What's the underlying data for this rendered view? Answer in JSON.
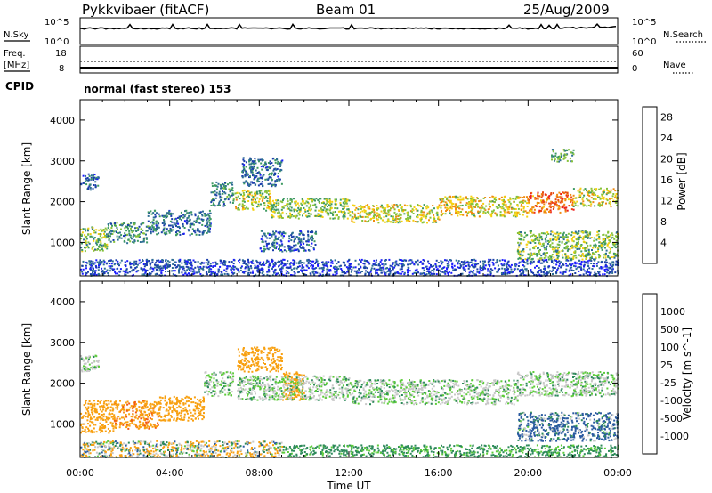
{
  "header": {
    "station": "Pykkvibaer (fitACF)",
    "beam": "Beam 01",
    "date": "25/Aug/2009"
  },
  "noise_panel": {
    "left_label": "N.Sky",
    "left_ticks": [
      "10^5",
      "10^0"
    ],
    "right_label": "N.Search",
    "right_ticks": [
      "10^5",
      "10^0"
    ]
  },
  "freq_panel": {
    "left_label_1": "Freq.",
    "left_label_2": "[MHz]",
    "left_ticks": [
      "18",
      "8"
    ],
    "right_label": "Nave",
    "right_ticks": [
      "60",
      "0"
    ]
  },
  "cpid": {
    "label": "CPID",
    "text": "normal (fast stereo) 153"
  },
  "colors": {
    "power": [
      "#1c1cff",
      "#1a3dab",
      "#2d6e94",
      "#3e9a62",
      "#86c23a",
      "#f4d010",
      "#f08a10",
      "#e84a10",
      "#ee1c1c"
    ],
    "velocity": [
      "#ee1c1c",
      "#f35a10",
      "#f8a010",
      "#c8c8c8",
      "#c8c8c8",
      "#5ccc3a",
      "#2d8a5a",
      "#2a5aa0",
      "#1c2ccc"
    ]
  },
  "chart_data": [
    {
      "type": "heatmap",
      "title": "",
      "xlabel": "",
      "ylabel": "Slant Range [km]",
      "xlim": [
        0,
        24
      ],
      "ylim": [
        180,
        4500
      ],
      "yticks": [
        1000,
        2000,
        3000,
        4000
      ],
      "colorbar": {
        "label": "Power [dB]",
        "range": [
          0,
          30
        ],
        "ticks": [
          4,
          8,
          12,
          16,
          20,
          24,
          28
        ],
        "tick_labels": [
          "4",
          "8",
          "12",
          "16",
          "20",
          "24",
          "28"
        ]
      },
      "quantity": "power",
      "bands": [
        {
          "t0": 0.0,
          "t1": 0.8,
          "r0": 2300,
          "r1": 2700,
          "v": 7
        },
        {
          "t0": 0.0,
          "t1": 1.2,
          "r0": 800,
          "r1": 1400,
          "v": 14
        },
        {
          "t0": 1.2,
          "t1": 3.0,
          "r0": 1000,
          "r1": 1500,
          "v": 11
        },
        {
          "t0": 3.0,
          "t1": 5.8,
          "r0": 1200,
          "r1": 1800,
          "v": 8
        },
        {
          "t0": 5.8,
          "t1": 6.8,
          "r0": 1900,
          "r1": 2500,
          "v": 9
        },
        {
          "t0": 6.8,
          "t1": 8.5,
          "r0": 1800,
          "r1": 2300,
          "v": 16
        },
        {
          "t0": 7.2,
          "t1": 9.0,
          "r0": 2400,
          "r1": 3100,
          "v": 8
        },
        {
          "t0": 8.0,
          "t1": 10.5,
          "r0": 800,
          "r1": 1300,
          "v": 7
        },
        {
          "t0": 8.5,
          "t1": 12.0,
          "r0": 1600,
          "r1": 2100,
          "v": 15
        },
        {
          "t0": 12.0,
          "t1": 16.0,
          "r0": 1500,
          "r1": 1950,
          "v": 17
        },
        {
          "t0": 16.0,
          "t1": 20.0,
          "r0": 1650,
          "r1": 2150,
          "v": 18
        },
        {
          "t0": 20.0,
          "t1": 22.0,
          "r0": 1750,
          "r1": 2250,
          "v": 24
        },
        {
          "t0": 22.0,
          "t1": 24.0,
          "r0": 1900,
          "r1": 2350,
          "v": 17
        },
        {
          "t0": 19.5,
          "t1": 24.0,
          "r0": 600,
          "r1": 1300,
          "v": 14
        },
        {
          "t0": 21.0,
          "t1": 22.0,
          "r0": 3000,
          "r1": 3300,
          "v": 12
        },
        {
          "t0": 0.0,
          "t1": 24.0,
          "r0": 200,
          "r1": 600,
          "v": 5
        }
      ]
    },
    {
      "type": "heatmap",
      "title": "",
      "xlabel": "Time UT",
      "ylabel": "Slant Range [km]",
      "xlim": [
        0,
        24
      ],
      "ylim": [
        180,
        4500
      ],
      "yticks": [
        1000,
        2000,
        3000,
        4000
      ],
      "xticks": [
        "00:00",
        "04:00",
        "08:00",
        "12:00",
        "16:00",
        "20:00",
        "00:00"
      ],
      "colorbar": {
        "label": "Velocity [m s^-1]",
        "tick_labels": [
          "1000",
          "500",
          "100",
          "25",
          "-25",
          "-100",
          "-500",
          "-1000"
        ]
      },
      "quantity": "velocity",
      "bands": [
        {
          "t0": 0.0,
          "t1": 0.8,
          "r0": 2300,
          "r1": 2700,
          "v": 0
        },
        {
          "t0": 0.0,
          "t1": 1.5,
          "r0": 800,
          "r1": 1600,
          "v": -300
        },
        {
          "t0": 1.5,
          "t1": 3.5,
          "r0": 900,
          "r1": 1600,
          "v": -400
        },
        {
          "t0": 3.5,
          "t1": 5.5,
          "r0": 1100,
          "r1": 1700,
          "v": -300
        },
        {
          "t0": 5.5,
          "t1": 6.8,
          "r0": 1700,
          "r1": 2300,
          "v": 0
        },
        {
          "t0": 7.0,
          "t1": 9.0,
          "r0": 2300,
          "r1": 2900,
          "v": -300
        },
        {
          "t0": 9.0,
          "t1": 10.0,
          "r0": 1600,
          "r1": 2300,
          "v": -300
        },
        {
          "t0": 7.0,
          "t1": 12.0,
          "r0": 1600,
          "r1": 2200,
          "v": 0
        },
        {
          "t0": 12.0,
          "t1": 19.5,
          "r0": 1500,
          "r1": 2100,
          "v": 0
        },
        {
          "t0": 19.5,
          "t1": 24.0,
          "r0": 1700,
          "r1": 2300,
          "v": 0
        },
        {
          "t0": 19.5,
          "t1": 24.0,
          "r0": 600,
          "r1": 1300,
          "v": 150
        },
        {
          "t0": 0.0,
          "t1": 9.0,
          "r0": 200,
          "r1": 600,
          "v": -60
        },
        {
          "t0": 9.0,
          "t1": 24.0,
          "r0": 200,
          "r1": 500,
          "v": 40
        }
      ]
    }
  ]
}
